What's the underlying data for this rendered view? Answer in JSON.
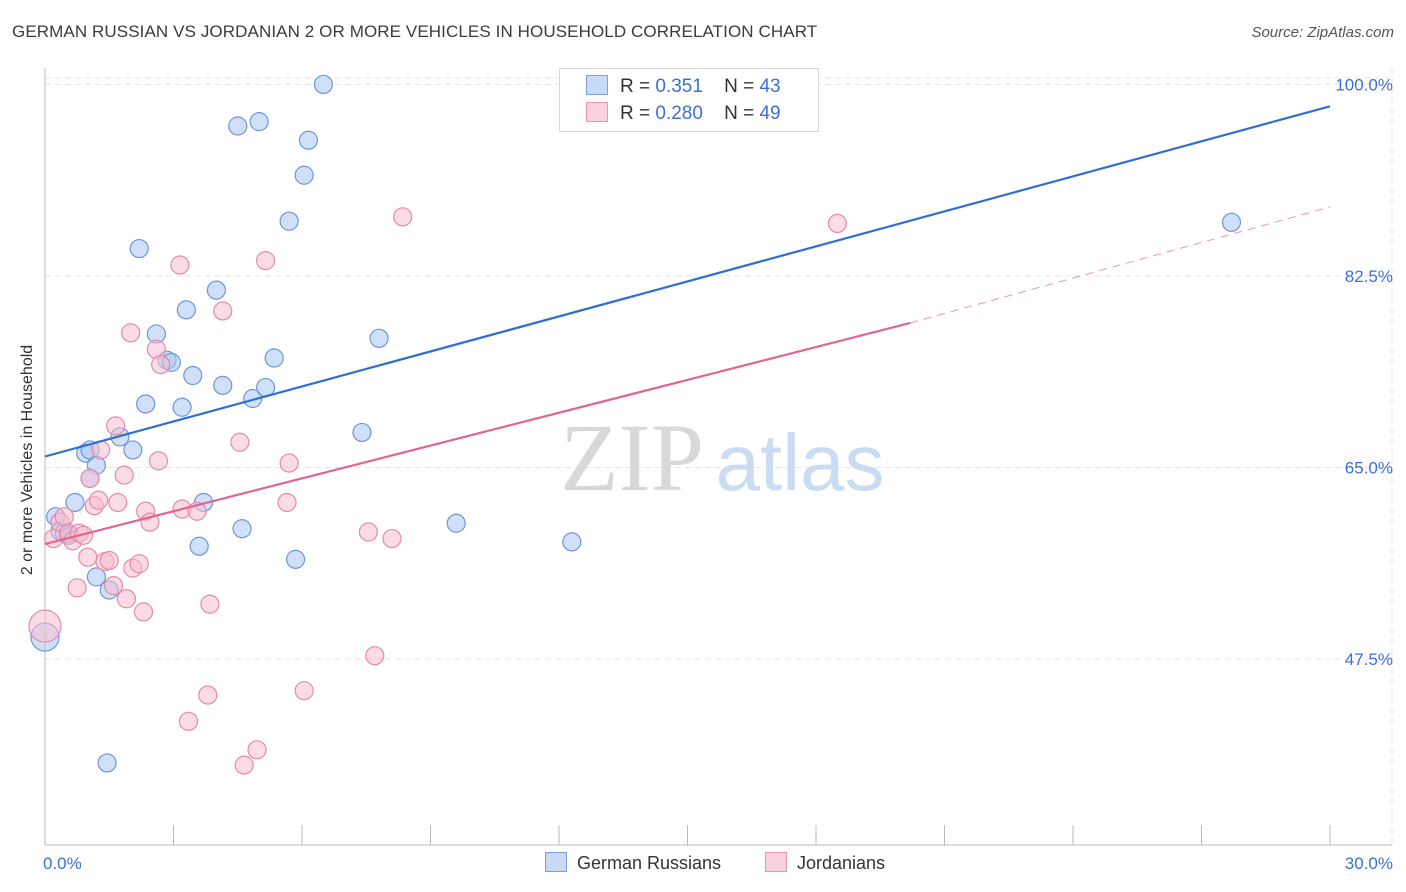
{
  "header": {
    "title": "GERMAN RUSSIAN VS JORDANIAN 2 OR MORE VEHICLES IN HOUSEHOLD CORRELATION CHART",
    "source": "Source: ZipAtlas.com"
  },
  "watermark": {
    "zip": "ZIP",
    "atlas": "atlas"
  },
  "legend": {
    "rows": [
      {
        "r_label": "R =",
        "r_value": "0.351",
        "n_label": "N =",
        "n_value": "43",
        "color": "#a9c6f2",
        "stroke": "#6b97d9"
      },
      {
        "r_label": "R =",
        "r_value": "0.280",
        "n_label": "N =",
        "n_value": "49",
        "color": "#f7bdd0",
        "stroke": "#e58aaa"
      }
    ]
  },
  "colors": {
    "blue_fill": "#a9c6f2",
    "blue_stroke": "#6d96d8",
    "blue_line": "#2f6fd0",
    "pink_fill": "#f7bdd0",
    "pink_stroke": "#e58aa9",
    "pink_line": "#e0668f",
    "tick_label": "#3d6fd8",
    "grid": "#e5e5e5"
  },
  "chart_data": {
    "type": "scatter",
    "title": "GERMAN RUSSIAN VS JORDANIAN 2 OR MORE VEHICLES IN HOUSEHOLD CORRELATION CHART",
    "xlabel": "",
    "ylabel": "2 or more Vehicles in Household",
    "xlim": [
      0,
      30
    ],
    "ylim": [
      30.5,
      101.5
    ],
    "x_tick_labels": [
      "0.0%",
      "30.0%"
    ],
    "y_ticks": [
      47.5,
      65.0,
      82.5,
      100.0
    ],
    "y_tick_labels": [
      "47.5%",
      "65.0%",
      "82.5%",
      "100.0%"
    ],
    "grid": true,
    "legend_position": "bottom",
    "series": [
      {
        "name": "German Russians",
        "color": "#a9c6f2",
        "trend": {
          "x": [
            0,
            30
          ],
          "y": [
            66.0,
            98.0
          ],
          "dashed_from": null
        },
        "points": [
          [
            0.0,
            49.5,
            14
          ],
          [
            0.25,
            60.5,
            9
          ],
          [
            0.35,
            59.2,
            9
          ],
          [
            0.45,
            59.0,
            9
          ],
          [
            0.55,
            58.8,
            9
          ],
          [
            0.7,
            61.8,
            9
          ],
          [
            0.95,
            66.3,
            9
          ],
          [
            1.05,
            66.6,
            9
          ],
          [
            1.2,
            65.2,
            9
          ],
          [
            1.2,
            55.0,
            9
          ],
          [
            1.5,
            53.8,
            9
          ],
          [
            1.45,
            38.0,
            9
          ],
          [
            1.75,
            67.8,
            9
          ],
          [
            2.05,
            66.6,
            9
          ],
          [
            2.2,
            85.0,
            9
          ],
          [
            2.35,
            70.8,
            9
          ],
          [
            2.6,
            77.2,
            9
          ],
          [
            2.85,
            74.8,
            9
          ],
          [
            2.95,
            74.6,
            9
          ],
          [
            3.2,
            70.5,
            9
          ],
          [
            3.3,
            79.4,
            9
          ],
          [
            3.45,
            73.4,
            9
          ],
          [
            3.6,
            57.8,
            9
          ],
          [
            3.7,
            61.8,
            9
          ],
          [
            4.0,
            81.2,
            9
          ],
          [
            4.15,
            72.5,
            9
          ],
          [
            4.5,
            96.2,
            9
          ],
          [
            4.6,
            59.4,
            9
          ],
          [
            4.85,
            71.3,
            9
          ],
          [
            5.0,
            96.6,
            9
          ],
          [
            5.15,
            72.3,
            9
          ],
          [
            5.35,
            75.0,
            9
          ],
          [
            5.7,
            87.5,
            9
          ],
          [
            5.85,
            56.6,
            9
          ],
          [
            6.05,
            91.7,
            9
          ],
          [
            6.15,
            94.9,
            9
          ],
          [
            6.5,
            100.0,
            9
          ],
          [
            7.4,
            68.2,
            9
          ],
          [
            7.8,
            76.8,
            9
          ],
          [
            9.6,
            59.9,
            9
          ],
          [
            12.3,
            58.2,
            9
          ],
          [
            27.7,
            87.4,
            9
          ],
          [
            1.05,
            64.0,
            9
          ]
        ]
      },
      {
        "name": "Jordanians",
        "color": "#f7bdd0",
        "trend": {
          "x": [
            0,
            20.2
          ],
          "y": [
            58.0,
            78.2
          ],
          "dashed_to": [
            30,
            88.8
          ]
        },
        "points": [
          [
            0.0,
            50.5,
            16
          ],
          [
            0.2,
            58.5,
            9
          ],
          [
            0.35,
            60.0,
            9
          ],
          [
            0.45,
            60.5,
            9
          ],
          [
            0.55,
            59.0,
            9
          ],
          [
            0.65,
            58.3,
            9
          ],
          [
            0.75,
            54.0,
            9
          ],
          [
            0.8,
            59.0,
            9
          ],
          [
            0.9,
            58.8,
            9
          ],
          [
            1.0,
            56.8,
            9
          ],
          [
            1.05,
            64.0,
            9
          ],
          [
            1.15,
            61.5,
            9
          ],
          [
            1.25,
            62.0,
            9
          ],
          [
            1.3,
            66.6,
            9
          ],
          [
            1.4,
            56.4,
            9
          ],
          [
            1.5,
            56.5,
            9
          ],
          [
            1.6,
            54.2,
            9
          ],
          [
            1.65,
            68.8,
            9
          ],
          [
            1.7,
            61.8,
            9
          ],
          [
            1.85,
            64.3,
            9
          ],
          [
            1.9,
            53.0,
            9
          ],
          [
            2.0,
            77.3,
            9
          ],
          [
            2.05,
            55.8,
            9
          ],
          [
            2.2,
            56.2,
            9
          ],
          [
            2.3,
            51.8,
            9
          ],
          [
            2.35,
            61.0,
            9
          ],
          [
            2.45,
            60.0,
            9
          ],
          [
            2.6,
            75.8,
            9
          ],
          [
            2.65,
            65.6,
            9
          ],
          [
            2.7,
            74.4,
            9
          ],
          [
            3.15,
            83.5,
            9
          ],
          [
            3.2,
            61.2,
            9
          ],
          [
            3.35,
            41.8,
            9
          ],
          [
            3.55,
            61.0,
            9
          ],
          [
            3.8,
            44.2,
            9
          ],
          [
            3.85,
            52.5,
            9
          ],
          [
            4.15,
            79.3,
            9
          ],
          [
            4.55,
            67.3,
            9
          ],
          [
            4.65,
            37.8,
            9
          ],
          [
            4.95,
            39.2,
            9
          ],
          [
            5.15,
            83.9,
            9
          ],
          [
            5.65,
            61.8,
            9
          ],
          [
            5.7,
            65.4,
            9
          ],
          [
            6.05,
            44.6,
            9
          ],
          [
            7.55,
            59.1,
            9
          ],
          [
            7.7,
            47.8,
            9
          ],
          [
            8.1,
            58.5,
            9
          ],
          [
            8.35,
            87.9,
            9
          ],
          [
            18.5,
            87.3,
            9
          ]
        ]
      }
    ]
  }
}
